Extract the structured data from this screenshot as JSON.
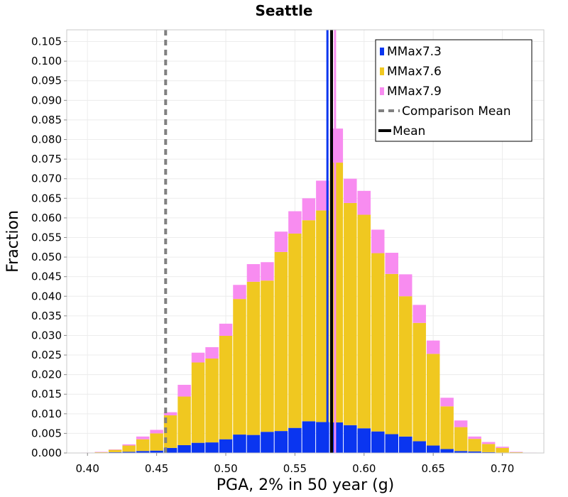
{
  "chart_data": {
    "type": "bar",
    "stacked": true,
    "title": "Seattle",
    "xlabel": "PGA, 2% in 50 year (g)",
    "ylabel": "Fraction",
    "xlim": [
      0.385,
      0.73
    ],
    "ylim": [
      0,
      0.108
    ],
    "xticks": [
      "0.40",
      "0.45",
      "0.50",
      "0.55",
      "0.60",
      "0.65",
      "0.70"
    ],
    "yticks": [
      "0.000",
      "0.005",
      "0.010",
      "0.015",
      "0.020",
      "0.025",
      "0.030",
      "0.035",
      "0.040",
      "0.045",
      "0.050",
      "0.055",
      "0.060",
      "0.065",
      "0.070",
      "0.075",
      "0.080",
      "0.085",
      "0.090",
      "0.095",
      "0.100",
      "0.105"
    ],
    "grid": true,
    "bin_width": 0.01,
    "x": [
      0.4,
      0.41,
      0.42,
      0.43,
      0.44,
      0.45,
      0.46,
      0.47,
      0.48,
      0.49,
      0.5,
      0.51,
      0.52,
      0.53,
      0.54,
      0.55,
      0.56,
      0.57,
      0.58,
      0.59,
      0.6,
      0.61,
      0.62,
      0.63,
      0.64,
      0.65,
      0.66,
      0.67,
      0.68,
      0.69,
      0.7,
      0.71,
      0.72
    ],
    "series": [
      {
        "name": "MMax7.3",
        "color": "#0a35f0",
        "values": [
          0.0,
          0.0001,
          0.0002,
          0.0003,
          0.0005,
          0.0006,
          0.0013,
          0.002,
          0.0026,
          0.0027,
          0.0035,
          0.0047,
          0.0046,
          0.0054,
          0.0056,
          0.0064,
          0.0081,
          0.0079,
          0.0078,
          0.0071,
          0.0063,
          0.0055,
          0.0048,
          0.0042,
          0.003,
          0.0019,
          0.001,
          0.0005,
          0.0004,
          0.0002,
          0.0001,
          0.0,
          0.0
        ]
      },
      {
        "name": "MMax7.6",
        "color": "#f0c820",
        "values": [
          0.0,
          0.0001,
          0.0006,
          0.0016,
          0.003,
          0.0044,
          0.0083,
          0.0124,
          0.0205,
          0.0214,
          0.0264,
          0.0346,
          0.0391,
          0.0386,
          0.0457,
          0.0496,
          0.0513,
          0.054,
          0.0663,
          0.0567,
          0.0545,
          0.0455,
          0.0409,
          0.0358,
          0.0302,
          0.0234,
          0.0109,
          0.0061,
          0.0032,
          0.0021,
          0.0012,
          0.0002,
          0.0
        ]
      },
      {
        "name": "MMax7.9",
        "color": "#f88cf0",
        "values": [
          0.0001,
          0.0001,
          0.0001,
          0.0003,
          0.0007,
          0.0009,
          0.0008,
          0.003,
          0.0025,
          0.0029,
          0.0031,
          0.0036,
          0.0045,
          0.0047,
          0.0052,
          0.0057,
          0.0056,
          0.0076,
          0.0087,
          0.0062,
          0.0061,
          0.006,
          0.0054,
          0.0056,
          0.0046,
          0.0034,
          0.0022,
          0.0017,
          0.0006,
          0.0005,
          0.0003,
          0.0001,
          0.0001
        ]
      }
    ],
    "lines": [
      {
        "name": "Comparison Mean",
        "x": 0.4565,
        "color": "#808080",
        "style": "dashed"
      },
      {
        "name": "Mean",
        "x": 0.5765,
        "color": "#000000",
        "style": "solid"
      },
      {
        "name": "MMax7.3",
        "x": 0.5735,
        "color": "#0a35f0",
        "style": "solid",
        "legend": false
      },
      {
        "name": "MMax7.9",
        "x": 0.579,
        "color": "#f88cf0",
        "style": "solid",
        "legend": false
      }
    ],
    "legend": {
      "position": "top-right",
      "entries": [
        {
          "label": "MMax7.3",
          "color": "#0a35f0",
          "kind": "swatch"
        },
        {
          "label": "MMax7.6",
          "color": "#f0c820",
          "kind": "swatch"
        },
        {
          "label": "MMax7.9",
          "color": "#f88cf0",
          "kind": "swatch"
        },
        {
          "label": "Comparison Mean",
          "color": "#808080",
          "kind": "dashed"
        },
        {
          "label": "Mean",
          "color": "#000000",
          "kind": "solid"
        }
      ]
    }
  }
}
